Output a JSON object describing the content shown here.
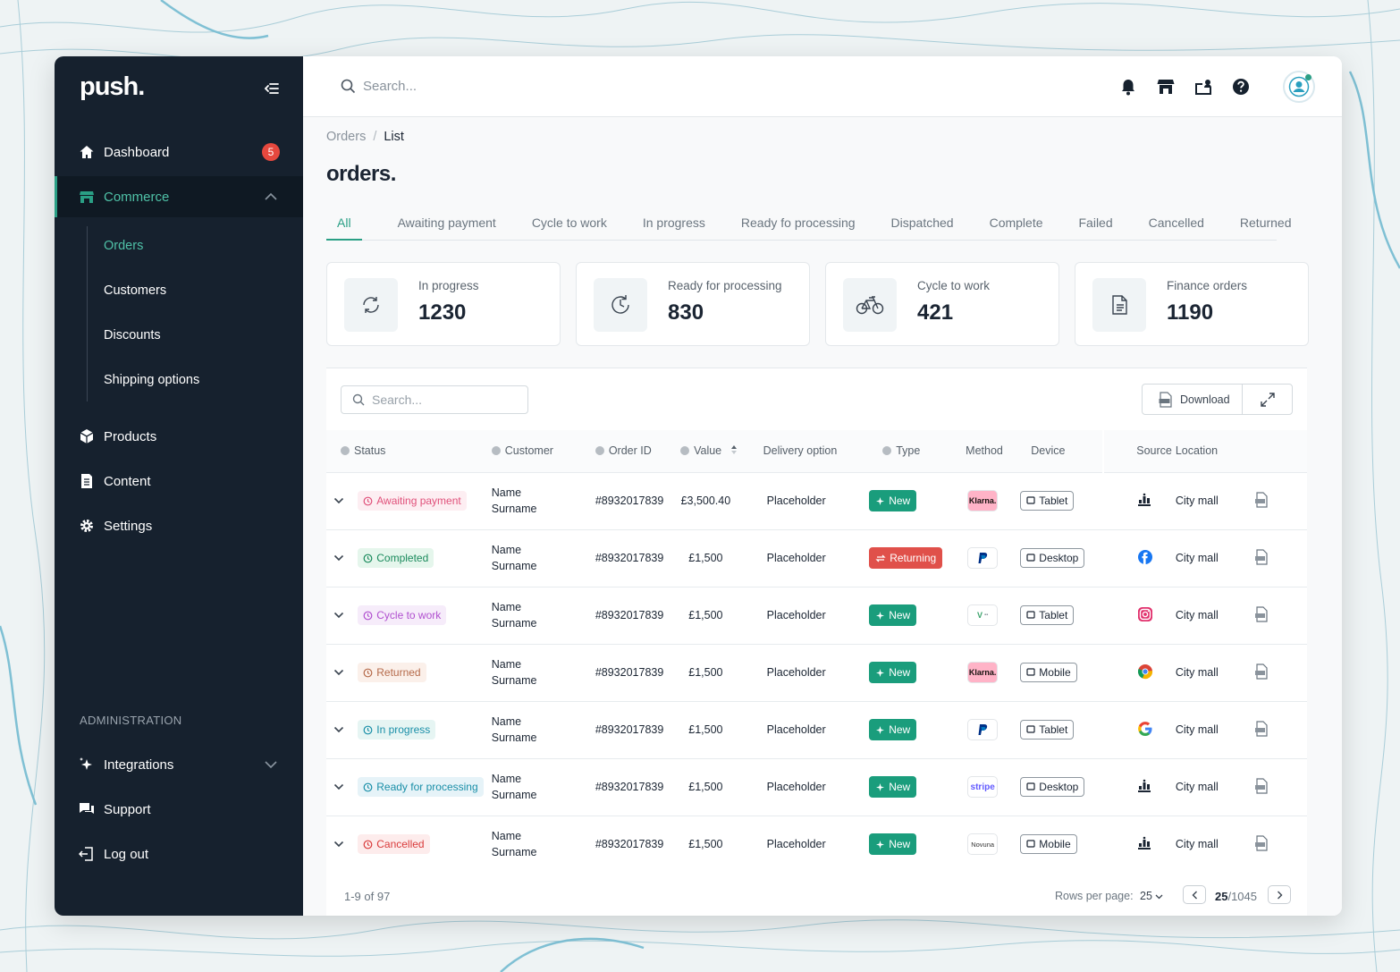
{
  "app": {
    "logo": "push."
  },
  "sidebar": {
    "dashboard": {
      "label": "Dashboard",
      "badge": "5"
    },
    "commerce": {
      "label": "Commerce"
    },
    "sub_items": [
      "Orders",
      "Customers",
      "Discounts",
      "Shipping options"
    ],
    "products": "Products",
    "content": "Content",
    "settings": "Settings",
    "admin_heading": "ADMINISTRATION",
    "integrations": "Integrations",
    "support": "Support",
    "logout": "Log out"
  },
  "topbar": {
    "search_placeholder": "Search..."
  },
  "breadcrumb": {
    "root": "Orders",
    "sep": "/",
    "current": "List"
  },
  "page_title": "orders.",
  "tabs": [
    "All",
    "Awaiting payment",
    "Cycle to work",
    "In progress",
    "Ready fo processing",
    "Dispatched",
    "Complete",
    "Failed",
    "Cancelled",
    "Returned"
  ],
  "stats": [
    {
      "label": "In progress",
      "value": "1230",
      "icon": "refresh-icon"
    },
    {
      "label": "Ready for processing",
      "value": "830",
      "icon": "clock-icon"
    },
    {
      "label": "Cycle to work",
      "value": "421",
      "icon": "bicycle-icon"
    },
    {
      "label": "Finance orders",
      "value": "1190",
      "icon": "document-icon"
    }
  ],
  "table_toolbar": {
    "search_placeholder": "Search...",
    "download_label": "Download"
  },
  "columns": {
    "status": "Status",
    "customer": "Customer",
    "order_id": "Order ID",
    "value": "Value",
    "delivery": "Delivery option",
    "type": "Type",
    "method": "Method",
    "device": "Device",
    "source": "Source",
    "location": "Location"
  },
  "rows": [
    {
      "status": "Awaiting payment",
      "status_color": "#e0507a",
      "status_bg": "#fdeef2",
      "cust1": "Name",
      "cust2": "Surname",
      "order_id": "#8932017839",
      "value": "£3,500.40",
      "delivery": "Placeholder",
      "type": "New",
      "method": "Klarna.",
      "device": "Tablet",
      "source": "analytics-icon",
      "location": "City mall"
    },
    {
      "status": "Completed",
      "status_color": "#1a8a5c",
      "status_bg": "#e5f6ec",
      "cust1": "Name",
      "cust2": "Surname",
      "order_id": "#8932017839",
      "value": "£1,500",
      "delivery": "Placeholder",
      "type": "Returning",
      "method": "P",
      "device": "Desktop",
      "source": "facebook-icon",
      "location": "City mall"
    },
    {
      "status": "Cycle to work",
      "status_color": "#b04fcf",
      "status_bg": "#f6ecfa",
      "cust1": "Name",
      "cust2": "Surname",
      "order_id": "#8932017839",
      "value": "£1,500",
      "delivery": "Placeholder",
      "type": "New",
      "method": "V",
      "device": "Tablet",
      "source": "instagram-icon",
      "location": "City mall"
    },
    {
      "status": "Returned",
      "status_color": "#b56a4a",
      "status_bg": "#fbf0ea",
      "cust1": "Name",
      "cust2": "Surname",
      "order_id": "#8932017839",
      "value": "£1,500",
      "delivery": "Placeholder",
      "type": "New",
      "method": "Klarna.",
      "device": "Mobile",
      "source": "chrome-icon",
      "location": "City mall"
    },
    {
      "status": "In progress",
      "status_color": "#1a8fa8",
      "status_bg": "#e6f5f3",
      "cust1": "Name",
      "cust2": "Surname",
      "order_id": "#8932017839",
      "value": "£1,500",
      "delivery": "Placeholder",
      "type": "New",
      "method": "P",
      "device": "Tablet",
      "source": "google-icon",
      "location": "City mall"
    },
    {
      "status": "Ready for processing",
      "status_color": "#1a8fa8",
      "status_bg": "#e6f3f8",
      "cust1": "Name",
      "cust2": "Surname",
      "order_id": "#8932017839",
      "value": "£1,500",
      "delivery": "Placeholder",
      "type": "New",
      "method": "stripe",
      "device": "Desktop",
      "source": "analytics-icon",
      "location": "City mall"
    },
    {
      "status": "Cancelled",
      "status_color": "#d93b3b",
      "status_bg": "#fdecec",
      "cust1": "Name",
      "cust2": "Surname",
      "order_id": "#8932017839",
      "value": "£1,500",
      "delivery": "Placeholder",
      "type": "New",
      "method": "Novuna",
      "device": "Mobile",
      "source": "analytics-icon",
      "location": "City mall"
    }
  ],
  "footer": {
    "range": "1-9 of 97",
    "rows_per_page_label": "Rows per page:",
    "rows_per_page": "25",
    "page_current": "25",
    "page_total": "/1045"
  },
  "colors": {
    "accent": "#2a9f85",
    "sidebar": "#16212e"
  }
}
